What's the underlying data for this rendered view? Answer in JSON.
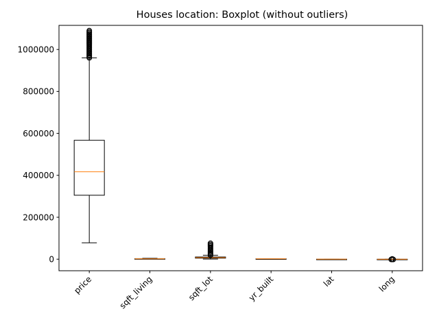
{
  "chart_data": {
    "type": "boxplot",
    "title": "Houses location: Boxplot (without outliers)",
    "xlabel": "",
    "ylabel": "",
    "ylim": [
      -55000,
      1115000
    ],
    "yticks": [
      0,
      200000,
      400000,
      600000,
      800000,
      1000000
    ],
    "ytick_labels": [
      "0",
      "200000",
      "400000",
      "600000",
      "800000",
      "1000000"
    ],
    "categories": [
      "price",
      "sqft_living",
      "sqft_lot",
      "yr_built",
      "lat",
      "long"
    ],
    "xtick_rotation": 45,
    "grid": false,
    "series": [
      {
        "whisker_low": 78000,
        "q1": 305000,
        "median": 417000,
        "q3": 567000,
        "whisker_high": 960000,
        "outliers_range": [
          960000,
          1090000
        ]
      },
      {
        "whisker_low": 370,
        "q1": 1400,
        "median": 1900,
        "q3": 2500,
        "whisker_high": 4100,
        "outliers_range": null
      },
      {
        "whisker_low": 520,
        "q1": 5000,
        "median": 7600,
        "q3": 10500,
        "whisker_high": 19000,
        "outliers_range": [
          19000,
          76000
        ]
      },
      {
        "whisker_low": 1900,
        "q1": 1951,
        "median": 1975,
        "q3": 1997,
        "whisker_high": 2015,
        "outliers_range": null
      },
      {
        "whisker_low": 47.2,
        "q1": 47.4,
        "median": 47.6,
        "q3": 47.7,
        "whisker_high": 47.8,
        "outliers_range": null
      },
      {
        "whisker_low": -122.5,
        "q1": -122.3,
        "median": -122.2,
        "q3": -122.1,
        "whisker_high": -121.8,
        "outliers_range": [
          -1200,
          1200
        ]
      }
    ],
    "colors": {
      "box": "#000000",
      "median": "#ff7f0e",
      "flier_edge": "#000000"
    }
  }
}
